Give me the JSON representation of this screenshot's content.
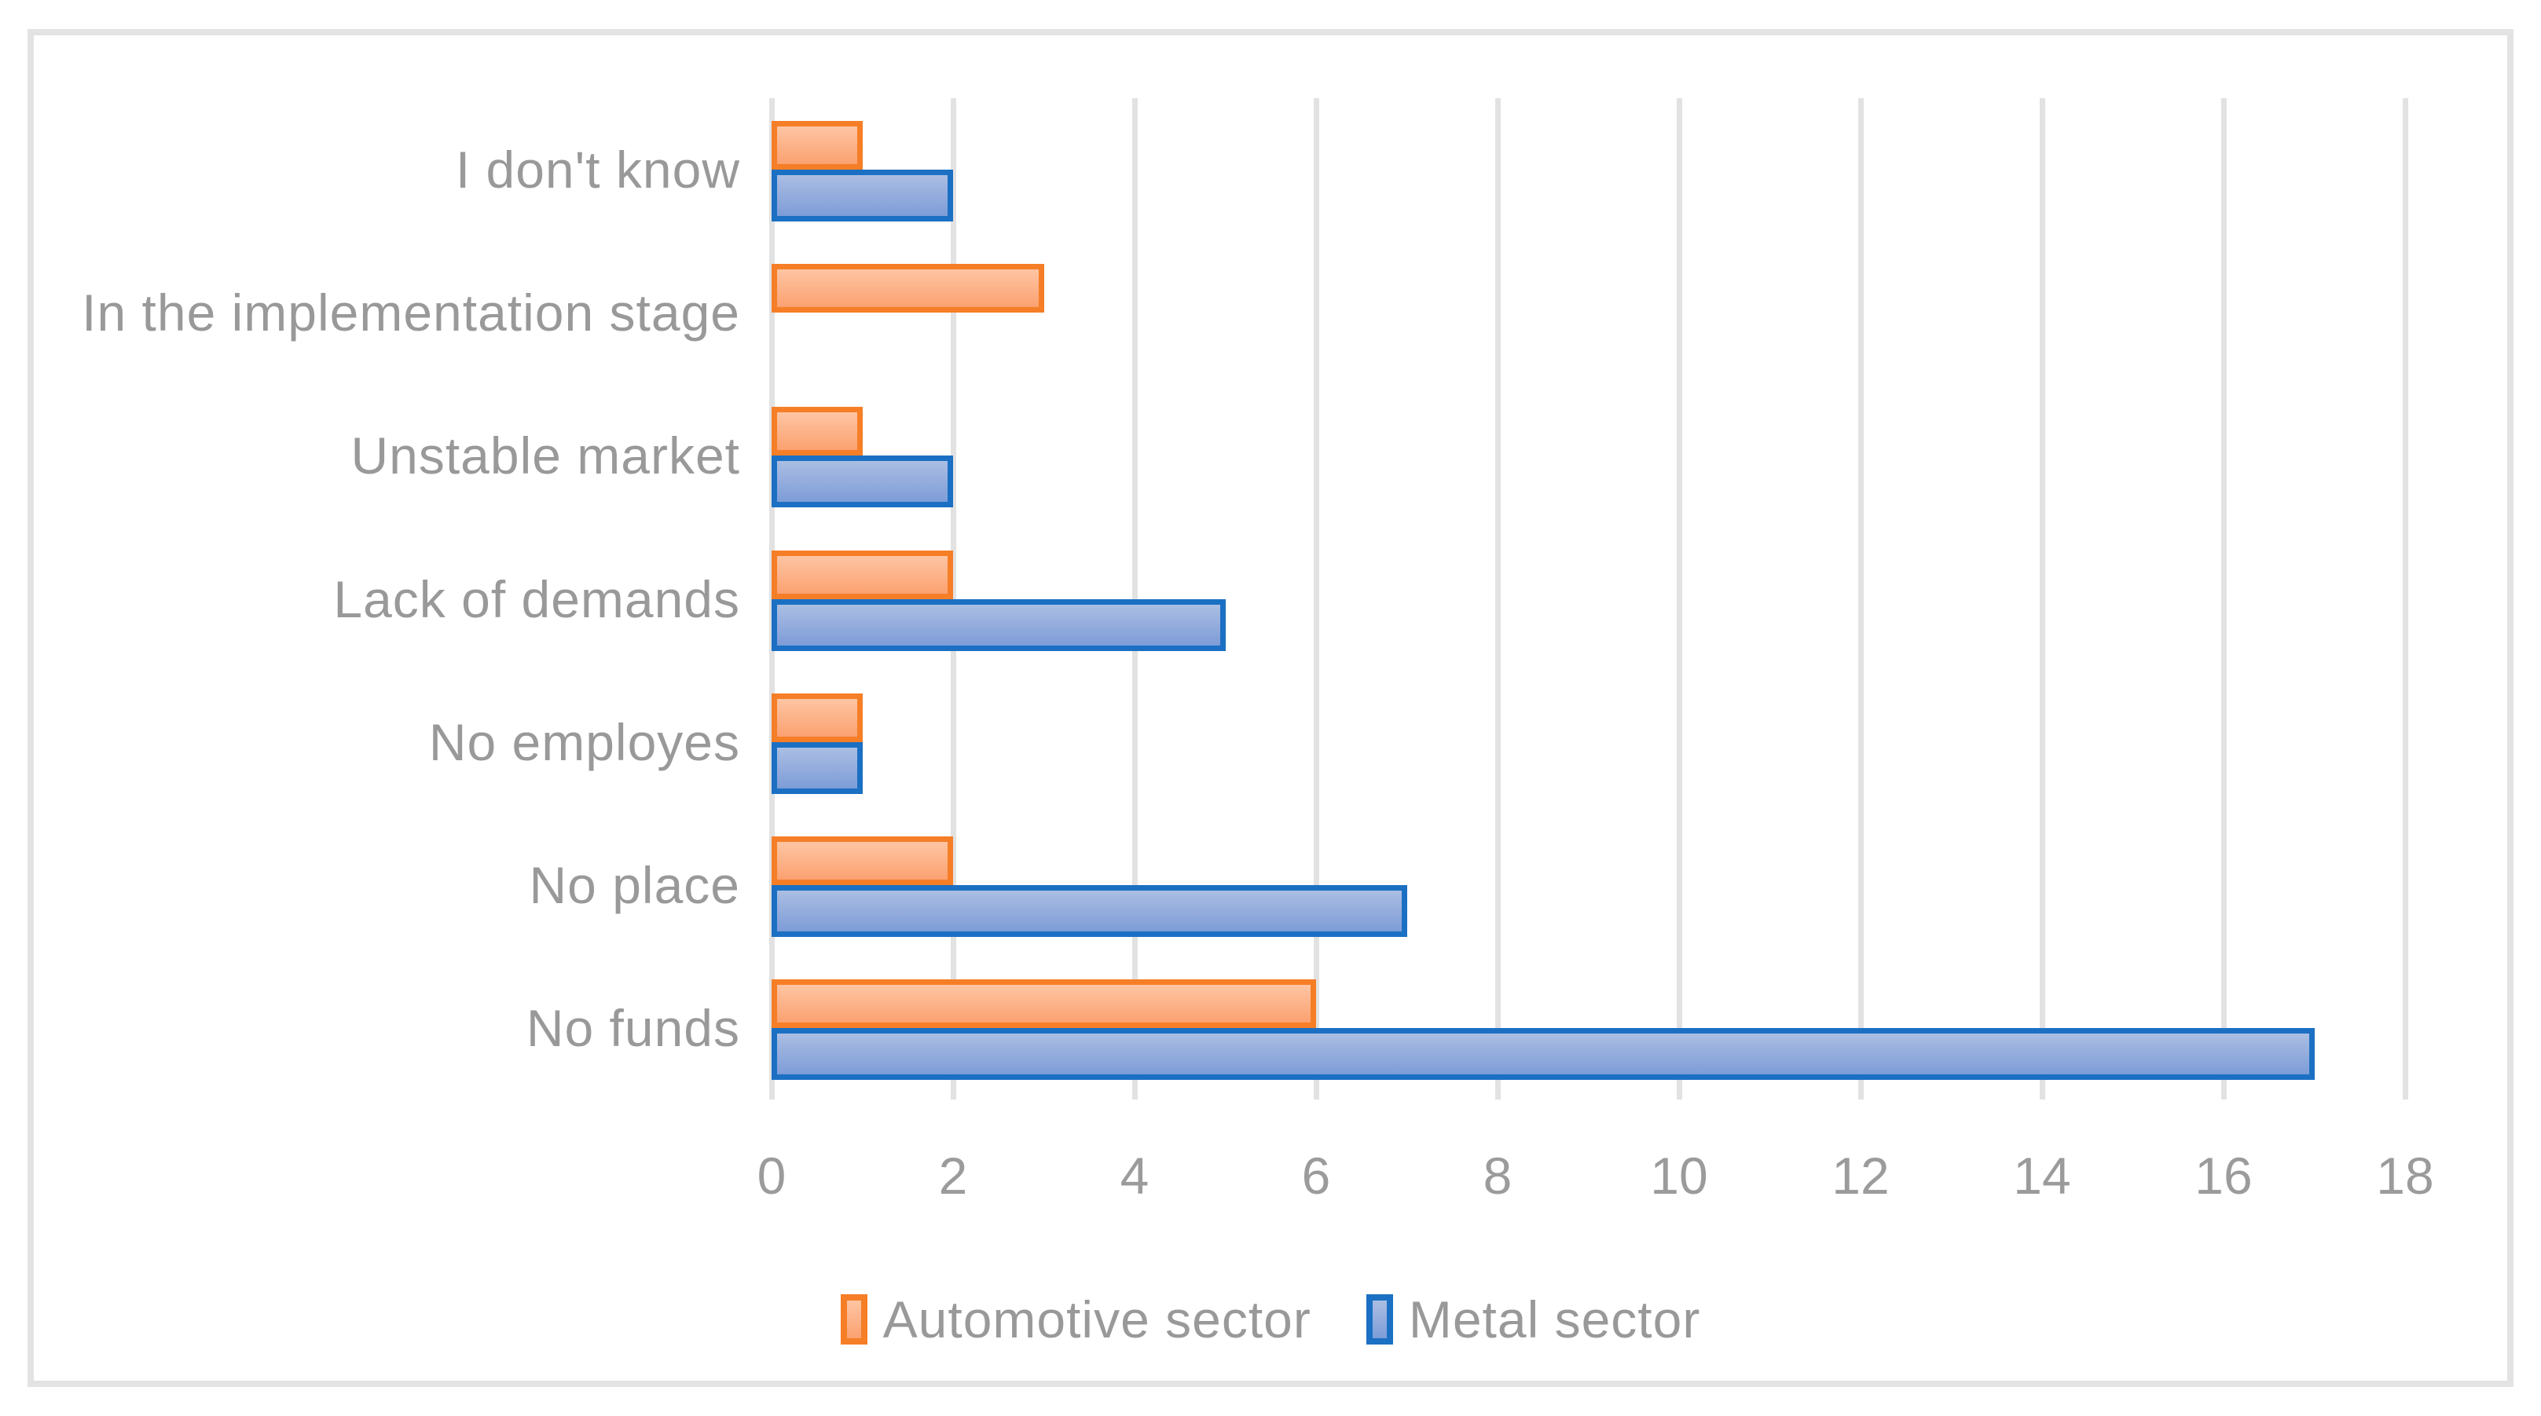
{
  "chart_data": {
    "type": "bar",
    "orientation": "horizontal",
    "title": "",
    "xlabel": "",
    "ylabel": "",
    "categories": [
      "I don't know",
      "In the implementation stage",
      "Unstable market",
      "Lack of demands",
      "No employes",
      "No place",
      "No funds"
    ],
    "series": [
      {
        "name": "Automotive sector",
        "values": [
          1,
          3,
          1,
          2,
          1,
          2,
          6
        ]
      },
      {
        "name": "Metal sector",
        "values": [
          2,
          0,
          2,
          5,
          1,
          7,
          17
        ]
      }
    ],
    "x_ticks": [
      0,
      2,
      4,
      6,
      8,
      10,
      12,
      14,
      16,
      18
    ],
    "xlim": [
      0,
      18
    ],
    "grid": true,
    "legend_position": "bottom-center",
    "colors": {
      "automotive_border": "#F57E27",
      "automotive_fill_top": "#FEC5A3",
      "automotive_fill_bottom": "#FBA170",
      "metal_border": "#1B70C3",
      "metal_fill_top": "#ABBEE3",
      "metal_fill_bottom": "#7D9CD7",
      "gridline": "#E2E2E2",
      "frame": "#E3E3E3",
      "text": "#999999"
    }
  }
}
